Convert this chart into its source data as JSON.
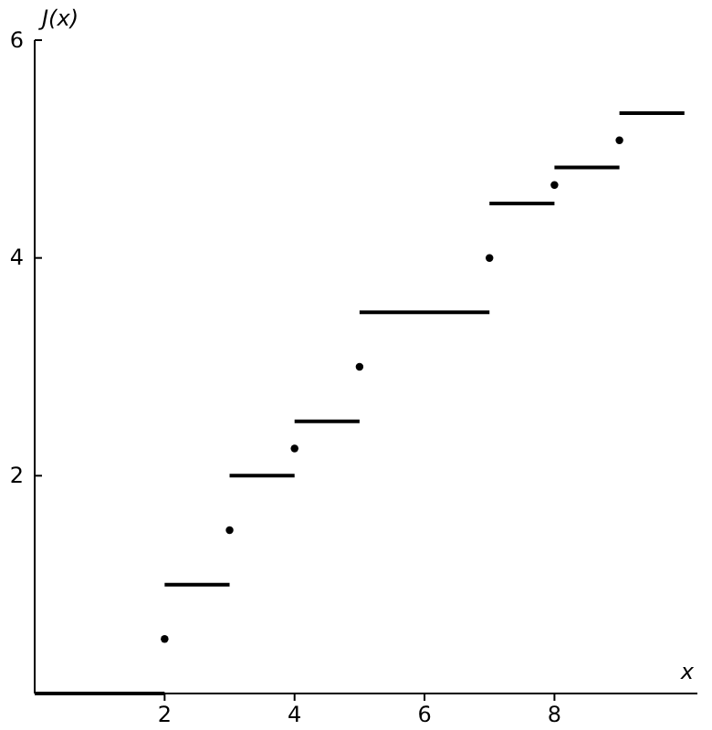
{
  "chart_data": {
    "type": "line",
    "xlabel": "x",
    "ylabel": "J(x)",
    "xlim": [
      0,
      10.2
    ],
    "xticks": [
      2,
      4,
      6,
      8
    ],
    "ylim": [
      0,
      6
    ],
    "yticks": [
      2,
      4,
      6
    ],
    "grid": false,
    "series": [
      {
        "color": "#000000",
        "marker": "none",
        "x": [
          0,
          2
        ],
        "values": [
          0,
          0
        ]
      },
      {
        "color": "#000000",
        "marker": "none",
        "x": [
          2,
          3
        ],
        "values": [
          1,
          1
        ]
      },
      {
        "color": "#000000",
        "marker": "none",
        "x": [
          3,
          4
        ],
        "values": [
          2,
          2
        ]
      },
      {
        "color": "#000000",
        "marker": "none",
        "x": [
          4,
          5
        ],
        "values": [
          2.5,
          2.5
        ]
      },
      {
        "color": "#000000",
        "marker": "none",
        "x": [
          5,
          7
        ],
        "values": [
          3.5,
          3.5
        ]
      },
      {
        "color": "#000000",
        "marker": "none",
        "x": [
          7,
          8
        ],
        "values": [
          4.5,
          4.5
        ]
      },
      {
        "color": "#000000",
        "marker": "none",
        "x": [
          8,
          9
        ],
        "values": [
          4.83,
          4.83
        ]
      },
      {
        "color": "#000000",
        "marker": "none",
        "x": [
          9,
          10
        ],
        "values": [
          5.33,
          5.33
        ]
      },
      {
        "type": "scatter",
        "color": "#000000",
        "marker": "circle",
        "x": [
          2,
          3,
          4,
          5,
          7,
          8,
          9
        ],
        "values": [
          0.5,
          1.5,
          2.25,
          3,
          4,
          4.67,
          5.08
        ]
      }
    ]
  }
}
